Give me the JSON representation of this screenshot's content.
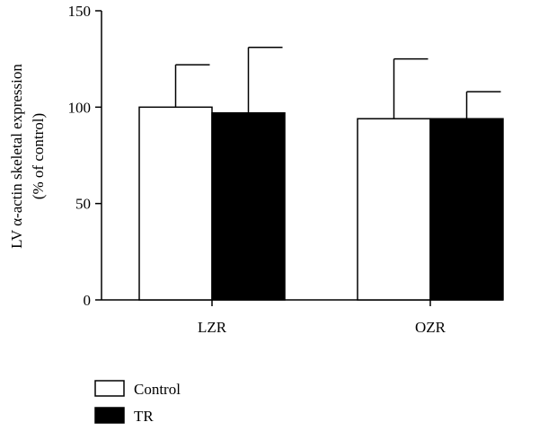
{
  "chart_data": {
    "type": "bar",
    "ylabel_line1": "LV α-actin skeletal expression",
    "ylabel_line2": "(% of control)",
    "xlabel": "",
    "ylim": [
      0,
      150
    ],
    "yticks": [
      0,
      50,
      100,
      150
    ],
    "categories": [
      "LZR",
      "OZR"
    ],
    "series": [
      {
        "name": "Control",
        "values": [
          100,
          94
        ],
        "errors": [
          22,
          31
        ],
        "color": "#ffffff"
      },
      {
        "name": "TR",
        "values": [
          97,
          94
        ],
        "errors": [
          34,
          14
        ],
        "color": "#000000"
      }
    ],
    "legend_position": "bottom-left",
    "grid": false
  }
}
